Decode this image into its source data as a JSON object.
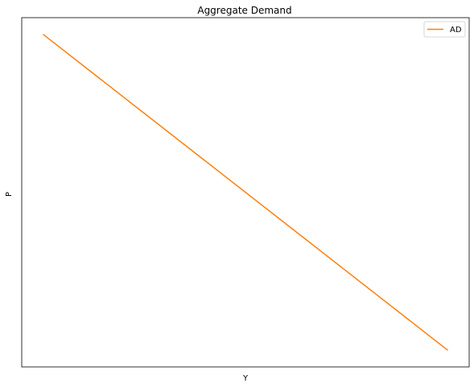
{
  "chart_data": {
    "type": "line",
    "title": "Aggregate Demand",
    "xlabel": "Y",
    "ylabel": "P",
    "xlim": [
      0,
      10.5
    ],
    "ylim": [
      0,
      10.5
    ],
    "grid": false,
    "show_ticks": false,
    "legend": {
      "placement": "top-right"
    },
    "series": [
      {
        "name": "AD",
        "color": "#ff7f0e",
        "x": [
          0.5,
          10.0
        ],
        "y": [
          10.0,
          0.5
        ]
      }
    ]
  }
}
